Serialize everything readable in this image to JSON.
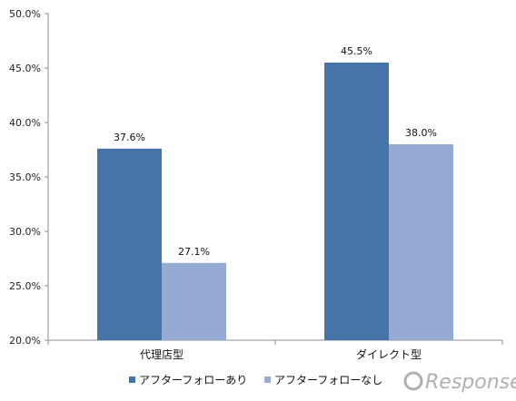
{
  "chart_data": {
    "type": "bar",
    "categories": [
      "代理店型",
      "ダイレクト型"
    ],
    "series": [
      {
        "name": "アフターフォローあり",
        "values": [
          37.6,
          45.5
        ],
        "color": "#4673a8"
      },
      {
        "name": "アフターフォローなし",
        "values": [
          27.1,
          38.0
        ],
        "color": "#95abd3"
      }
    ],
    "data_labels": [
      [
        "37.6%",
        "45.5%"
      ],
      [
        "27.1%",
        "38.0%"
      ]
    ],
    "ylim": [
      20.0,
      50.0
    ],
    "yticks": [
      "20.0%",
      "25.0%",
      "30.0%",
      "35.0%",
      "40.0%",
      "45.0%",
      "50.0%"
    ],
    "grid": false,
    "legend_position": "bottom"
  },
  "watermark": {
    "text": "Response.",
    "color": "#b0b0b0"
  }
}
